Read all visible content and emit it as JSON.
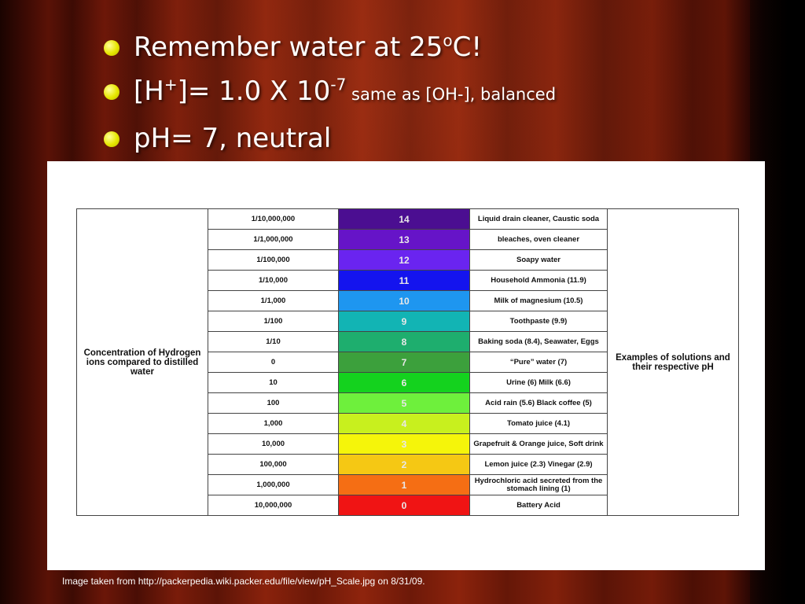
{
  "slide": {
    "bullets": [
      {
        "main": "Remember water at 25",
        "sup": "o",
        "tail": "C!"
      },
      {
        "main": "[H",
        "sup": "+",
        "mid": "]= 1.0 X 10",
        "sup2": "-7",
        "small": " same as [OH-], balanced"
      },
      {
        "main": "pH= 7, neutral"
      }
    ],
    "caption": "Image taken from http://packerpedia.wiki.packer.edu/file/view/pH_Scale.jpg on 8/31/09."
  },
  "table": {
    "left_label": "Concentration of Hydrogen ions compared to distilled water",
    "right_label": "Examples of solutions and their respective pH",
    "rows": [
      {
        "conc": "1/10,000,000",
        "ph": "14",
        "color": "#4b0e91",
        "example": "Liquid drain cleaner, Caustic soda"
      },
      {
        "conc": "1/1,000,000",
        "ph": "13",
        "color": "#6614c8",
        "example": "bleaches, oven cleaner"
      },
      {
        "conc": "1/100,000",
        "ph": "12",
        "color": "#6a24f0",
        "example": "Soapy water"
      },
      {
        "conc": "1/10,000",
        "ph": "11",
        "color": "#1414ee",
        "example": "Household Ammonia (11.9)"
      },
      {
        "conc": "1/1,000",
        "ph": "10",
        "color": "#1e96f0",
        "example": "Milk of magnesium (10.5)"
      },
      {
        "conc": "1/100",
        "ph": "9",
        "color": "#12b4b4",
        "example": "Toothpaste (9.9)"
      },
      {
        "conc": "1/10",
        "ph": "8",
        "color": "#1eae6e",
        "example": "Baking soda (8.4), Seawater, Eggs"
      },
      {
        "conc": "0",
        "ph": "7",
        "color": "#3ca03c",
        "example": "“Pure” water (7)"
      },
      {
        "conc": "10",
        "ph": "6",
        "color": "#14d21e",
        "example": "Urine (6) Milk (6.6)"
      },
      {
        "conc": "100",
        "ph": "5",
        "color": "#6ef03c",
        "example": "Acid rain (5.6) Black coffee (5)"
      },
      {
        "conc": "1,000",
        "ph": "4",
        "color": "#c8f01e",
        "example": "Tomato juice (4.1)"
      },
      {
        "conc": "10,000",
        "ph": "3",
        "color": "#f5f50a",
        "example": "Grapefruit & Orange juice, Soft drink"
      },
      {
        "conc": "100,000",
        "ph": "2",
        "color": "#f5c814",
        "example": "Lemon juice (2.3) Vinegar (2.9)"
      },
      {
        "conc": "1,000,000",
        "ph": "1",
        "color": "#f56e14",
        "example": "Hydrochloric acid secreted from the stomach lining (1)"
      },
      {
        "conc": "10,000,000",
        "ph": "0",
        "color": "#f01414",
        "example": "Battery Acid"
      }
    ]
  }
}
